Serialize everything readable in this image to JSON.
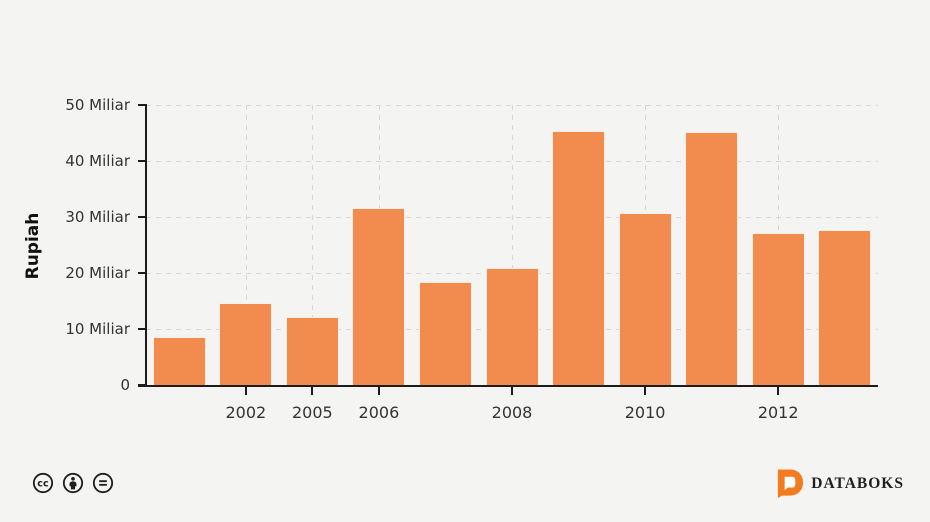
{
  "chart_data": {
    "type": "bar",
    "title": "",
    "ylabel": "Rupiah",
    "y_unit": "Miliar",
    "ylim": [
      0,
      50
    ],
    "grid": "dashed",
    "legend": "none",
    "background_color": "#f4f4f2",
    "bar_color": "#f18b4e",
    "axis_color": "#1c1c1c",
    "label_color": "#333333",
    "bar_count": 11,
    "values": [
      8.6,
      14.7,
      12.1,
      31.6,
      18.4,
      20.9,
      45.4,
      30.7,
      45.1,
      27.1,
      27.6
    ],
    "y_ticks": [
      "0",
      "10 Miliar",
      "20 Miliar",
      "30 Miliar",
      "40 Miliar",
      "50 Miliar"
    ],
    "x_ticks": [
      {
        "bar_index": 1,
        "label": "2002"
      },
      {
        "bar_index": 2,
        "label": "2005"
      },
      {
        "bar_index": 3,
        "label": "2006"
      },
      {
        "bar_index": 5,
        "label": "2008"
      },
      {
        "bar_index": 7,
        "label": "2010"
      },
      {
        "bar_index": 9,
        "label": "2012"
      }
    ]
  },
  "footer": {
    "license_icons": [
      "cc-icon",
      "attribution-icon",
      "no-derivatives-icon"
    ],
    "brand": "DATABOKS",
    "brand_color": "#f47b20",
    "brand_text_color": "#231f20"
  }
}
